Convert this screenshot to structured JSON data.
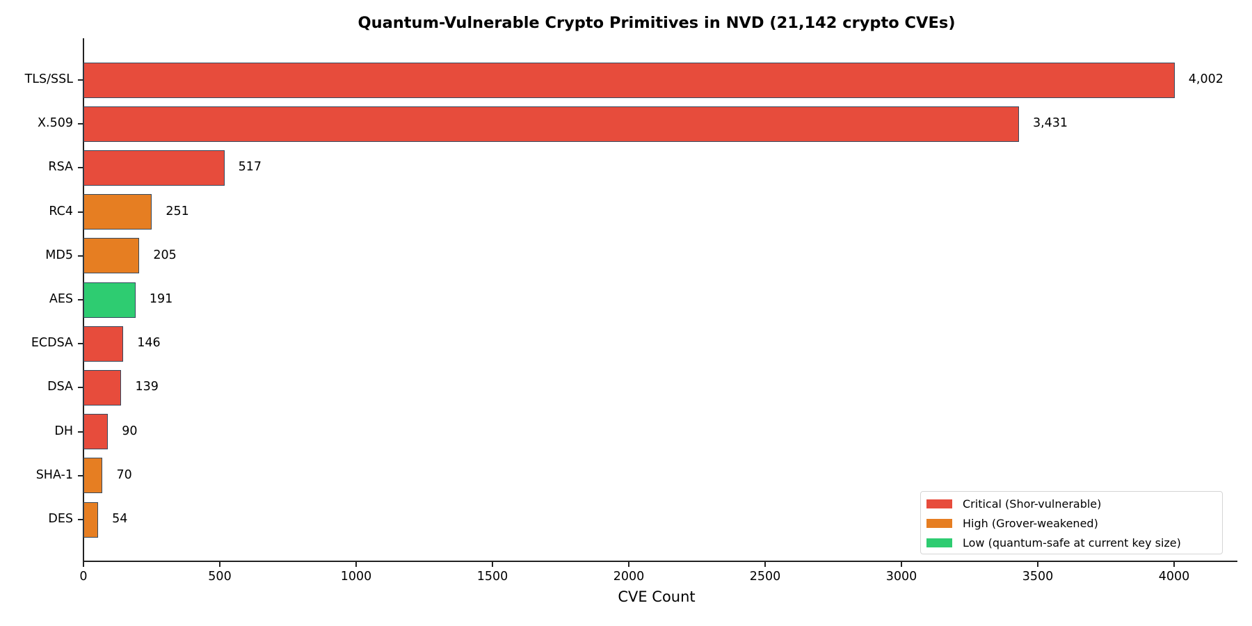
{
  "chart_data": {
    "type": "bar",
    "orientation": "horizontal",
    "title": "Quantum-Vulnerable Crypto Primitives in NVD (21,142 crypto CVEs)",
    "xlabel": "CVE Count",
    "ylabel": "",
    "xlim": [
      0,
      4230
    ],
    "xticks": [
      0,
      500,
      1000,
      1500,
      2000,
      2500,
      3000,
      3500,
      4000
    ],
    "xtick_labels": [
      "0",
      "500",
      "1000",
      "1500",
      "2000",
      "2500",
      "3000",
      "3500",
      "4000"
    ],
    "grid": false,
    "legend_position": "lower right",
    "categories": [
      "TLS/SSL",
      "X.509",
      "RSA",
      "RC4",
      "MD5",
      "AES",
      "ECDSA",
      "DSA",
      "DH",
      "SHA-1",
      "DES"
    ],
    "values": [
      4002,
      3431,
      517,
      251,
      205,
      191,
      146,
      139,
      90,
      70,
      54
    ],
    "value_labels": [
      "4,002",
      "3,431",
      "517",
      "251",
      "205",
      "191",
      "146",
      "139",
      "90",
      "70",
      "54"
    ],
    "risk": [
      "critical",
      "critical",
      "critical",
      "high",
      "high",
      "low",
      "critical",
      "critical",
      "critical",
      "high",
      "high"
    ],
    "colors": {
      "critical": "#e74c3c",
      "high": "#e67e22",
      "low": "#2ecc71",
      "edge": "#34495e"
    },
    "legend": [
      {
        "key": "critical",
        "label": "Critical (Shor-vulnerable)",
        "color": "#e74c3c"
      },
      {
        "key": "high",
        "label": "High (Grover-weakened)",
        "color": "#e67e22"
      },
      {
        "key": "low",
        "label": "Low (quantum-safe at current key size)",
        "color": "#2ecc71"
      }
    ]
  }
}
